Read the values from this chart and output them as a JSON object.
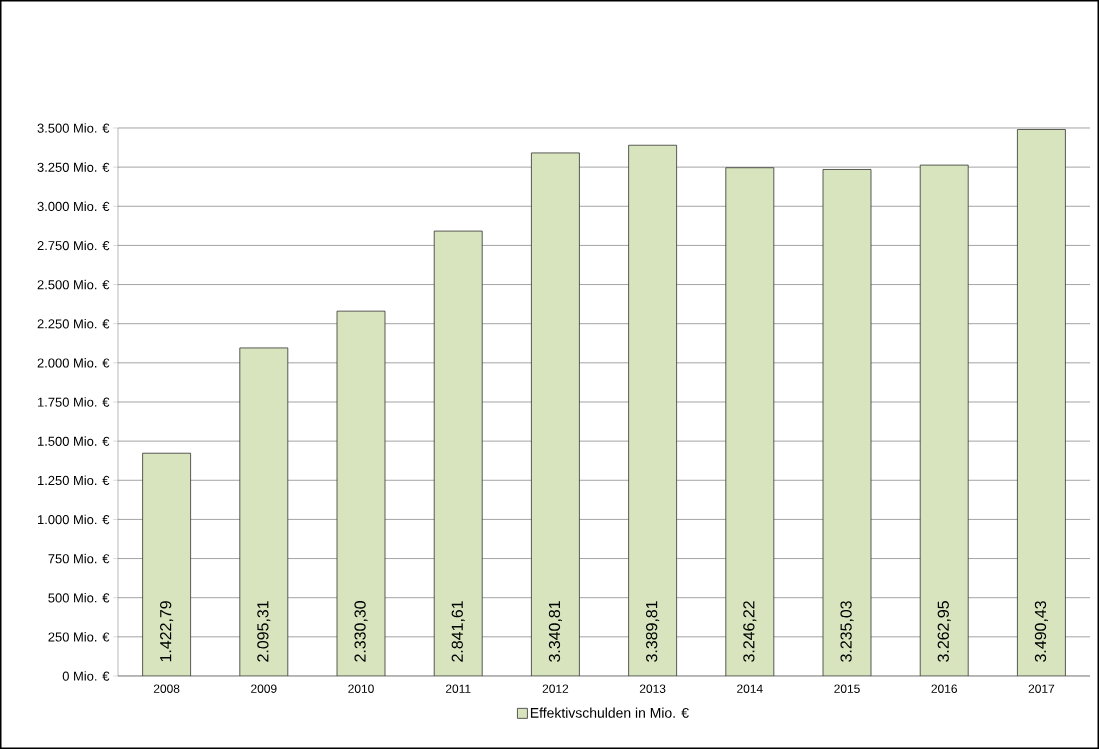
{
  "chart_data": {
    "type": "bar",
    "categories": [
      "2008",
      "2009",
      "2010",
      "2011",
      "2012",
      "2013",
      "2014",
      "2015",
      "2016",
      "2017"
    ],
    "series": [
      {
        "name": "Effektivschulden in Mio. €",
        "color": "#d7e4bd",
        "values": [
          1422.79,
          2095.31,
          2330.3,
          2841.61,
          3340.81,
          3389.81,
          3246.22,
          3235.03,
          3262.95,
          3490.43
        ],
        "value_labels": [
          "1.422,79",
          "2.095,31",
          "2.330,30",
          "2.841,61",
          "3.340,81",
          "3.389,81",
          "3.246,22",
          "3.235,03",
          "3.262,95",
          "3.490,43"
        ]
      }
    ],
    "ylim": [
      0,
      3500
    ],
    "yticks": [
      {
        "value": 0,
        "label": "0 Mio. €"
      },
      {
        "value": 250,
        "label": "250 Mio. €"
      },
      {
        "value": 500,
        "label": "500 Mio. €"
      },
      {
        "value": 750,
        "label": "750 Mio. €"
      },
      {
        "value": 1000,
        "label": "1.000 Mio. €"
      },
      {
        "value": 1250,
        "label": "1.250 Mio. €"
      },
      {
        "value": 1500,
        "label": "1.500 Mio. €"
      },
      {
        "value": 1750,
        "label": "1.750 Mio. €"
      },
      {
        "value": 2000,
        "label": "2.000 Mio. €"
      },
      {
        "value": 2250,
        "label": "2.250 Mio. €"
      },
      {
        "value": 2500,
        "label": "2.500 Mio. €"
      },
      {
        "value": 2750,
        "label": "2.750 Mio. €"
      },
      {
        "value": 3000,
        "label": "3.000 Mio. €"
      },
      {
        "value": 3250,
        "label": "3.250 Mio. €"
      },
      {
        "value": 3500,
        "label": "3.500 Mio. €"
      }
    ],
    "grid": "y",
    "legend": "bottom"
  }
}
